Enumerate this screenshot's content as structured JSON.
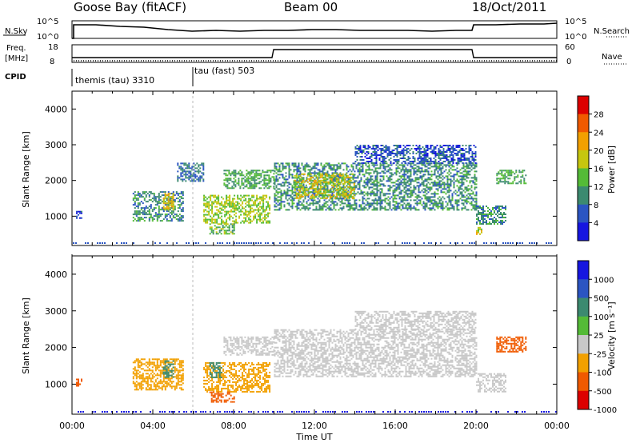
{
  "header": {
    "station": "Goose Bay (fitACF)",
    "beam": "Beam 00",
    "date": "18/Oct/2011"
  },
  "summary": {
    "nsky_label": "N.Sky",
    "nsearch_label": "N.Search",
    "freq_label": "Freq.",
    "freq_unit": "[MHz]",
    "nave_label": "Nave",
    "cpid_label": "CPID",
    "left_ticks_top": [
      "10^5",
      "10^0"
    ],
    "right_ticks_top": [
      "10^5",
      "10^0"
    ],
    "left_ticks_freq": [
      "18",
      "8"
    ],
    "right_ticks_nave": [
      "60",
      "0"
    ],
    "cpid_segments": [
      {
        "label": "themis (tau) 3310",
        "start": 0.0,
        "end": 6.0
      },
      {
        "label": "tau (fast) 503",
        "start": 6.0,
        "end": 24.0
      }
    ]
  },
  "chart_data": [
    {
      "type": "heatmap",
      "title": "",
      "xlabel": "",
      "ylabel": "Slant Range [km]",
      "xlim": [
        0,
        24
      ],
      "ylim": [
        180,
        4500
      ],
      "yticks": [
        "1000",
        "2000",
        "3000",
        "4000"
      ],
      "colorbar": {
        "label": "Power [dB]",
        "ticks": [
          "4",
          "8",
          "12",
          "16",
          "20",
          "24",
          "28"
        ],
        "colors": [
          "#1616e0",
          "#2b55c2",
          "#3c8a70",
          "#54bb37",
          "#c6c60f",
          "#f2a000",
          "#f05a00",
          "#dd0000"
        ]
      },
      "regions": [
        {
          "t0": 0.2,
          "t1": 0.5,
          "r0": 950,
          "r1": 1150,
          "value": 6
        },
        {
          "t0": 3.0,
          "t1": 5.5,
          "r0": 850,
          "r1": 1700,
          "value": 10
        },
        {
          "t0": 4.5,
          "t1": 5.0,
          "r0": 1200,
          "r1": 1650,
          "value": 20
        },
        {
          "t0": 5.2,
          "t1": 6.5,
          "r0": 2000,
          "r1": 2500,
          "value": 8
        },
        {
          "t0": 6.5,
          "t1": 9.8,
          "r0": 800,
          "r1": 1600,
          "value": 16
        },
        {
          "t0": 6.8,
          "t1": 8.0,
          "r0": 500,
          "r1": 800,
          "value": 14
        },
        {
          "t0": 7.5,
          "t1": 10.0,
          "r0": 1800,
          "r1": 2300,
          "value": 12
        },
        {
          "t0": 10.0,
          "t1": 20.0,
          "r0": 1200,
          "r1": 2500,
          "value": 10
        },
        {
          "t0": 11.0,
          "t1": 14.0,
          "r0": 1500,
          "r1": 2200,
          "value": 18
        },
        {
          "t0": 14.0,
          "t1": 20.0,
          "r0": 2500,
          "r1": 3000,
          "value": 6
        },
        {
          "t0": 20.0,
          "t1": 21.5,
          "r0": 800,
          "r1": 1300,
          "value": 10
        },
        {
          "t0": 20.0,
          "t1": 20.3,
          "r0": 500,
          "r1": 700,
          "value": 18
        },
        {
          "t0": 21.0,
          "t1": 22.5,
          "r0": 1900,
          "r1": 2300,
          "value": 12
        }
      ]
    },
    {
      "type": "heatmap",
      "title": "",
      "xlabel": "Time UT",
      "ylabel": "Slant Range [km]",
      "xlim": [
        0,
        24
      ],
      "ylim": [
        180,
        4500
      ],
      "xticks": [
        "00:00",
        "04:00",
        "08:00",
        "12:00",
        "16:00",
        "20:00",
        "00:00"
      ],
      "yticks": [
        "1000",
        "2000",
        "3000",
        "4000"
      ],
      "colorbar": {
        "label": "Velocity [m s⁻¹]",
        "ticks": [
          "1000",
          "500",
          "100",
          "25",
          "-25",
          "-100",
          "-500",
          "-1000"
        ],
        "colors": [
          "#1616e0",
          "#2b55c2",
          "#3c8a70",
          "#54bb37",
          "#c8c8c8",
          "#f2a000",
          "#f05a00",
          "#dd0000"
        ]
      },
      "regions": [
        {
          "t0": 0.2,
          "t1": 0.5,
          "r0": 950,
          "r1": 1150,
          "value": -200
        },
        {
          "t0": 3.0,
          "t1": 5.5,
          "r0": 850,
          "r1": 1700,
          "value": -80
        },
        {
          "t0": 4.5,
          "t1": 5.0,
          "r0": 1200,
          "r1": 1650,
          "value": 150
        },
        {
          "t0": 6.5,
          "t1": 9.8,
          "r0": 800,
          "r1": 1600,
          "value": -80
        },
        {
          "t0": 6.8,
          "t1": 7.4,
          "r0": 1200,
          "r1": 1600,
          "value": 150
        },
        {
          "t0": 6.8,
          "t1": 8.0,
          "r0": 500,
          "r1": 800,
          "value": -120
        },
        {
          "t0": 7.5,
          "t1": 10.0,
          "r0": 1800,
          "r1": 2300,
          "value": 0
        },
        {
          "t0": 10.0,
          "t1": 20.0,
          "r0": 1200,
          "r1": 2500,
          "value": 0
        },
        {
          "t0": 14.0,
          "t1": 20.0,
          "r0": 2500,
          "r1": 3000,
          "value": 0
        },
        {
          "t0": 20.0,
          "t1": 21.5,
          "r0": 800,
          "r1": 1300,
          "value": 0
        },
        {
          "t0": 21.0,
          "t1": 22.5,
          "r0": 1900,
          "r1": 2300,
          "value": -150
        }
      ]
    }
  ]
}
